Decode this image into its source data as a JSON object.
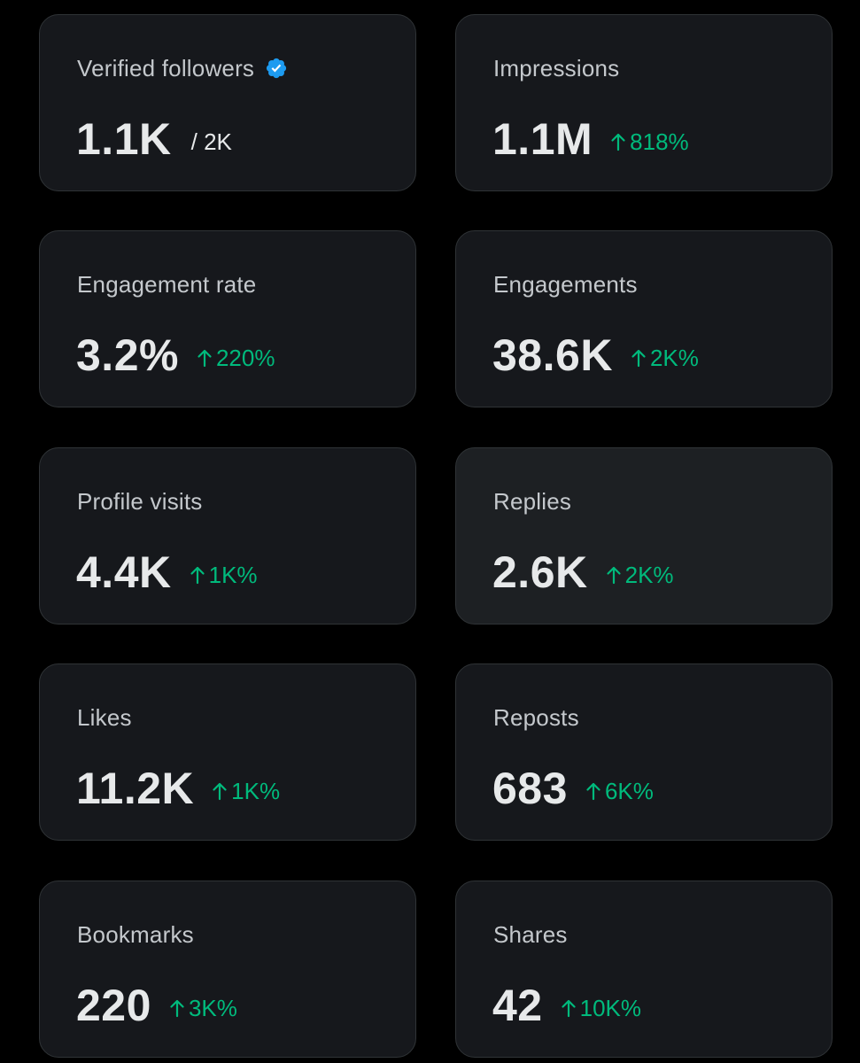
{
  "colors": {
    "background": "#000000",
    "card": "#16181c",
    "card_hover": "#1d2023",
    "border": "#2f3336",
    "label": "#c4c8cc",
    "value": "#e7e9ea",
    "positive": "#00ba7c",
    "verified": "#1d9bf0"
  },
  "cards": [
    {
      "label": "Verified followers",
      "value": "1.1K",
      "denominator": "/ 2K",
      "icon": "verified-badge-icon"
    },
    {
      "label": "Impressions",
      "value": "1.1M",
      "change": "818%",
      "icon": "arrow-up-icon"
    },
    {
      "label": "Engagement rate",
      "value": "3.2%",
      "change": "220%",
      "icon": "arrow-up-icon"
    },
    {
      "label": "Engagements",
      "value": "38.6K",
      "change": "2K%",
      "icon": "arrow-up-icon"
    },
    {
      "label": "Profile visits",
      "value": "4.4K",
      "change": "1K%",
      "icon": "arrow-up-icon"
    },
    {
      "label": "Replies",
      "value": "2.6K",
      "change": "2K%",
      "icon": "arrow-up-icon"
    },
    {
      "label": "Likes",
      "value": "11.2K",
      "change": "1K%",
      "icon": "arrow-up-icon"
    },
    {
      "label": "Reposts",
      "value": "683",
      "change": "6K%",
      "icon": "arrow-up-icon"
    },
    {
      "label": "Bookmarks",
      "value": "220",
      "change": "3K%",
      "icon": "arrow-up-icon"
    },
    {
      "label": "Shares",
      "value": "42",
      "change": "10K%",
      "icon": "arrow-up-icon"
    }
  ]
}
